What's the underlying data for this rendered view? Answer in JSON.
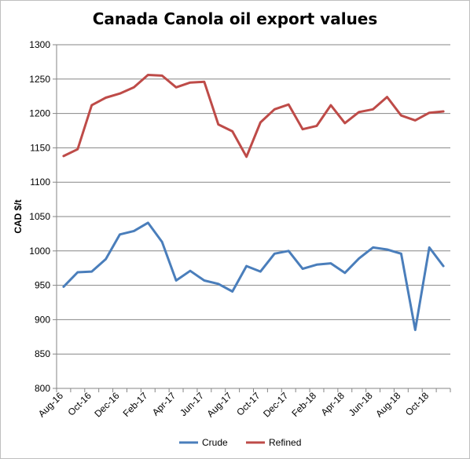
{
  "chart_data": {
    "type": "line",
    "title": "Canada Canola oil export values",
    "xlabel": "",
    "ylabel": "CAD $/t",
    "ylim": [
      800,
      1300
    ],
    "yticks": [
      800,
      850,
      900,
      950,
      1000,
      1050,
      1100,
      1150,
      1200,
      1250,
      1300
    ],
    "grid": "horizontal",
    "legend_position": "bottom",
    "categories": [
      "Aug-16",
      "Sep-16",
      "Oct-16",
      "Nov-16",
      "Dec-16",
      "Jan-17",
      "Feb-17",
      "Mar-17",
      "Apr-17",
      "May-17",
      "Jun-17",
      "Jul-17",
      "Aug-17",
      "Sep-17",
      "Oct-17",
      "Nov-17",
      "Dec-17",
      "Jan-18",
      "Feb-18",
      "Mar-18",
      "Apr-18",
      "May-18",
      "Jun-18",
      "Jul-18",
      "Aug-18",
      "Sep-18",
      "Oct-18",
      "Nov-18"
    ],
    "xtick_labels": [
      "Aug-16",
      "",
      "Oct-16",
      "",
      "Dec-16",
      "",
      "Feb-17",
      "",
      "Apr-17",
      "",
      "Jun-17",
      "",
      "Aug-17",
      "",
      "Oct-17",
      "",
      "Dec-17",
      "",
      "Feb-18",
      "",
      "Apr-18",
      "",
      "Jun-18",
      "",
      "Aug-18",
      "",
      "Oct-18",
      ""
    ],
    "series": [
      {
        "name": "Crude",
        "color": "#4a7ebb",
        "values": [
          948,
          969,
          970,
          988,
          1024,
          1029,
          1041,
          1013,
          957,
          971,
          957,
          952,
          941,
          978,
          970,
          996,
          1000,
          974,
          980,
          982,
          968,
          989,
          1005,
          1002,
          996,
          885,
          1005,
          978
        ]
      },
      {
        "name": "Refined",
        "color": "#be4b48",
        "values": [
          1138,
          1148,
          1212,
          1223,
          1229,
          1238,
          1256,
          1255,
          1238,
          1245,
          1246,
          1184,
          1174,
          1137,
          1187,
          1206,
          1213,
          1177,
          1182,
          1212,
          1186,
          1202,
          1206,
          1224,
          1197,
          1190,
          1201,
          1203
        ]
      }
    ]
  }
}
